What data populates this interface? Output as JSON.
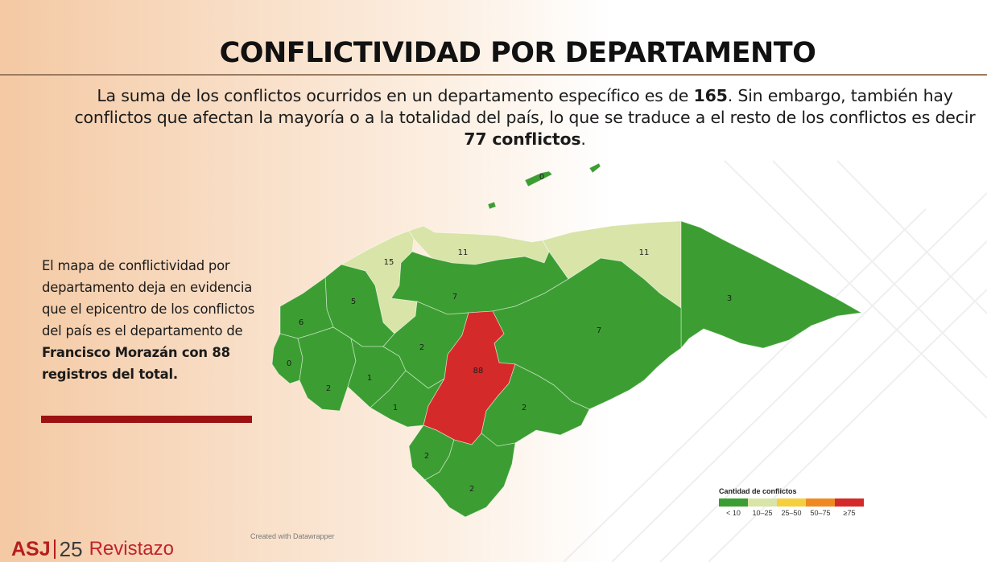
{
  "header": {
    "title": "CONFLICTIVIDAD POR DEPARTAMENTO"
  },
  "intro": {
    "part1": "La suma de los conflictos ocurridos en un departamento específico es de ",
    "total_specific": "165",
    "part2": ". Sin embargo, también hay conflictos que afectan la mayoría o a la totalidad del país, lo que se traduce a el resto de los conflictos es decir ",
    "rest_conflicts": "77 conflictos",
    "part3": "."
  },
  "sidebar": {
    "text": "El mapa de conflictividad por departamento deja en evidencia que el epicentro de los conflictos del país es el departamento de ",
    "highlight": "Francisco Morazán con 88 registros del total."
  },
  "map": {
    "departments": [
      {
        "id": "islas-de-la-bahia",
        "value": "0"
      },
      {
        "id": "cortes",
        "value": "15"
      },
      {
        "id": "atlantida",
        "value": "11"
      },
      {
        "id": "colon",
        "value": "11"
      },
      {
        "id": "gracias-a-dios",
        "value": "3"
      },
      {
        "id": "santa-barbara",
        "value": "5"
      },
      {
        "id": "copan",
        "value": "6"
      },
      {
        "id": "yoro",
        "value": "7"
      },
      {
        "id": "olancho",
        "value": "7"
      },
      {
        "id": "ocotepeque",
        "value": "0"
      },
      {
        "id": "lempira",
        "value": "2"
      },
      {
        "id": "intibuca",
        "value": "1"
      },
      {
        "id": "comayagua",
        "value": "2"
      },
      {
        "id": "la-paz",
        "value": "1"
      },
      {
        "id": "francisco-morazan",
        "value": "88"
      },
      {
        "id": "el-paraiso",
        "value": "2"
      },
      {
        "id": "valle",
        "value": "2"
      },
      {
        "id": "choluteca",
        "value": "2"
      }
    ],
    "colors": {
      "lt10": "#3c9e32",
      "r10_25": "#d8e4a8",
      "r25_50": "#f4d03f",
      "r50_75": "#ef8a22",
      "ge75": "#d42a2a"
    }
  },
  "legend": {
    "title": "Cantidad de conflictos",
    "items": [
      {
        "label": "< 10",
        "color": "#3c9e32"
      },
      {
        "label": "10–25",
        "color": "#d8e4a8"
      },
      {
        "label": "25–50",
        "color": "#f4d03f"
      },
      {
        "label": "50–75",
        "color": "#ef8a22"
      },
      {
        "label": "≥75",
        "color": "#d42a2a"
      }
    ]
  },
  "credit": "Created with Datawrapper",
  "logo": {
    "asj": "ASJ",
    "number": "25",
    "revista": "Revistazo"
  }
}
